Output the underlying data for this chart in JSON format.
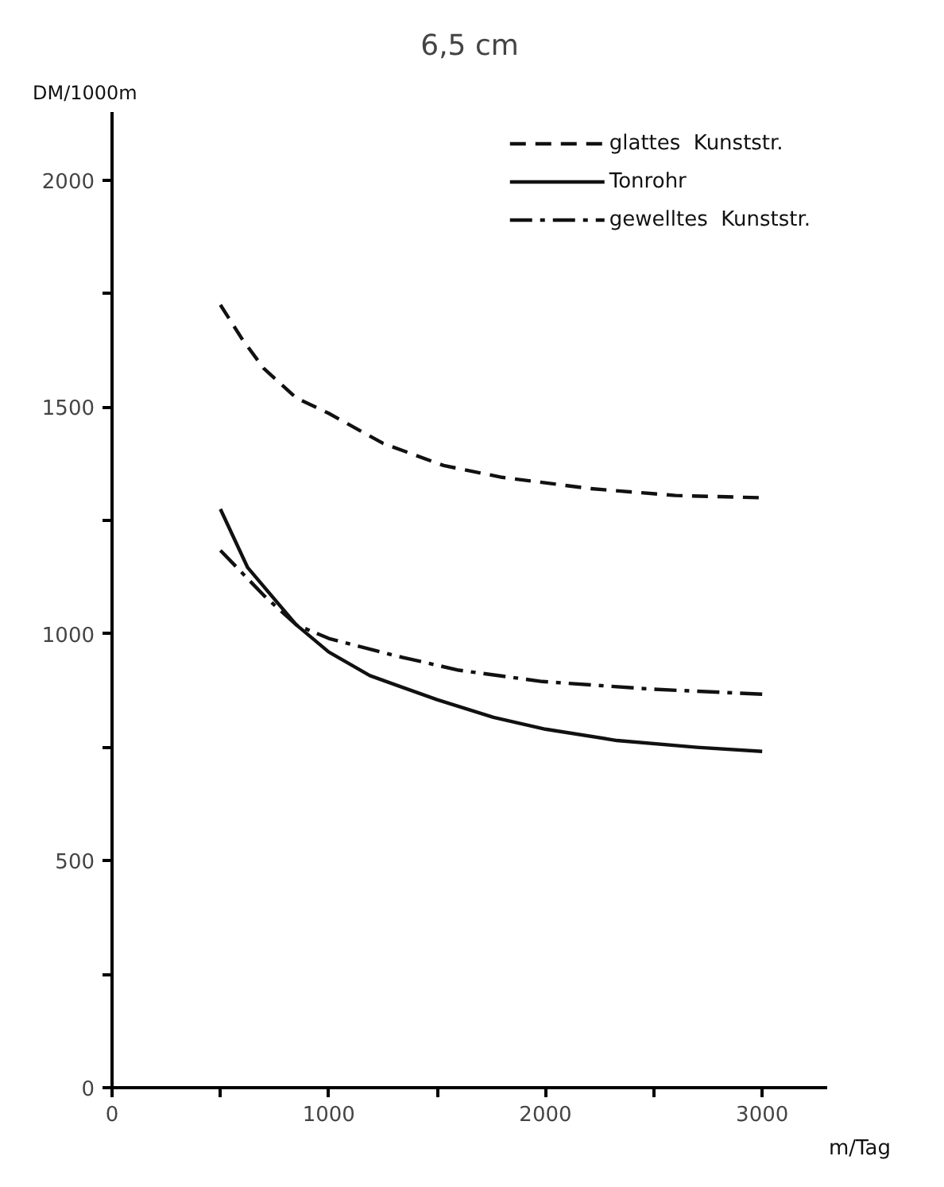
{
  "chart_data": {
    "type": "line",
    "title": "6,5 cm",
    "ylabel": "DM/1000m",
    "xlabel": "m/Tag",
    "xlim": [
      0,
      3300
    ],
    "ylim": [
      0,
      2150
    ],
    "xticks": [
      0,
      {
        "value": 500,
        "label": null
      },
      1000,
      {
        "value": 1500,
        "label": null
      },
      2000,
      {
        "value": 2500,
        "label": null
      },
      3000
    ],
    "yticks": [
      0,
      {
        "value": 250,
        "label": null
      },
      500,
      {
        "value": 750,
        "label": null
      },
      1000,
      {
        "value": 1250,
        "label": null
      },
      1500,
      {
        "value": 1750,
        "label": null
      },
      2000
    ],
    "grid": false,
    "legend": "top right",
    "marker": "none",
    "series": [
      {
        "name": "glattes  Kunststr.",
        "color": "#111111",
        "line_style": "dashed",
        "x": [
          500,
          600,
          700,
          850,
          1000,
          1250,
          1530,
          1800,
          2210,
          2600,
          3000
        ],
        "values": [
          1725,
          1650,
          1585,
          1520,
          1486,
          1420,
          1371,
          1345,
          1320,
          1305,
          1300
        ]
      },
      {
        "name": "Tonrohr",
        "color": "#111111",
        "line_style": "solid",
        "x": [
          500,
          626,
          850,
          1000,
          1190,
          1500,
          1760,
          2000,
          2330,
          2700,
          3000
        ],
        "values": [
          1275,
          1146,
          1020,
          960,
          908,
          855,
          816,
          790,
          765,
          750,
          741
        ]
      },
      {
        "name": "gewelltes  Kunststr.",
        "color": "#111111",
        "line_style": "dashdot",
        "x": [
          500,
          700,
          850,
          1000,
          1306,
          1600,
          1986,
          2500,
          3000
        ],
        "values": [
          1184,
          1085,
          1020,
          990,
          952,
          920,
          895,
          878,
          867
        ]
      }
    ]
  }
}
